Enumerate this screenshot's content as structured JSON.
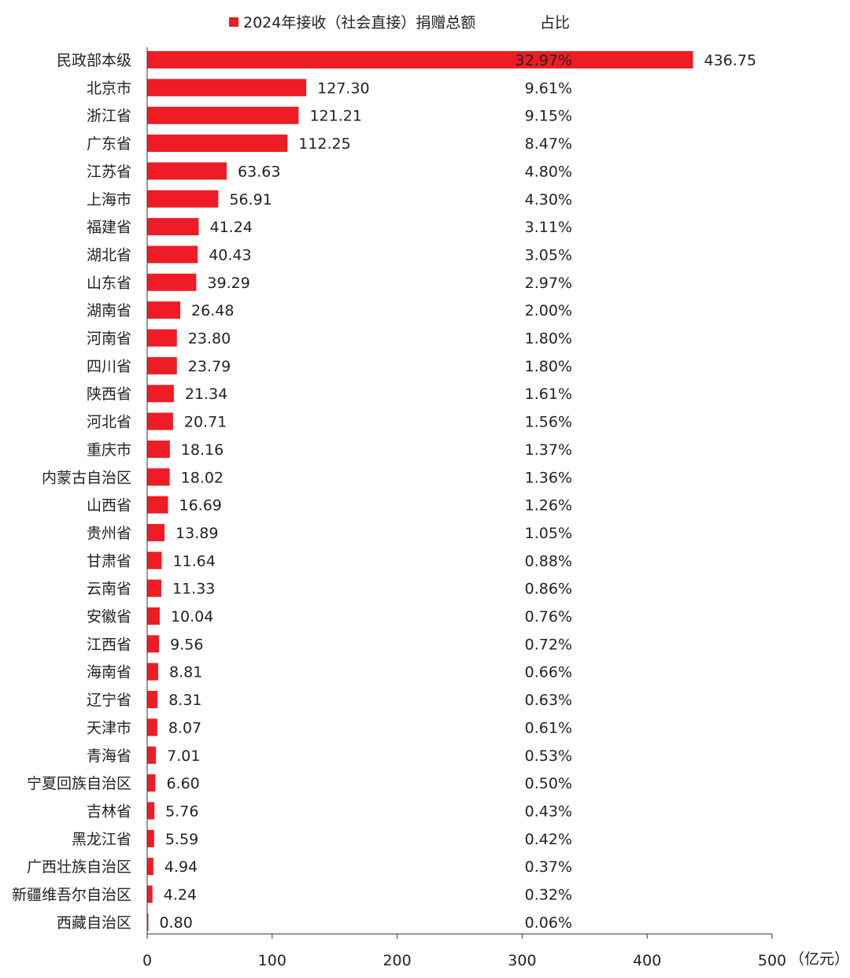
{
  "chart_data": {
    "type": "bar",
    "orientation": "horizontal",
    "colors": {
      "bar": "#ee1c25",
      "axis": "#333333",
      "text": "#222222"
    },
    "legend": {
      "series_name": "2024年接收（社会直接）捐赠总额",
      "position": "top",
      "share_header": "占比"
    },
    "categories": [
      "民政部本级",
      "北京市",
      "浙江省",
      "广东省",
      "江苏省",
      "上海市",
      "福建省",
      "湖北省",
      "山东省",
      "湖南省",
      "河南省",
      "四川省",
      "陕西省",
      "河北省",
      "重庆市",
      "内蒙古自治区",
      "山西省",
      "贵州省",
      "甘肃省",
      "云南省",
      "安徽省",
      "江西省",
      "海南省",
      "辽宁省",
      "天津市",
      "青海省",
      "宁夏回族自治区",
      "吉林省",
      "黑龙江省",
      "广西壮族自治区",
      "新疆维吾尔自治区",
      "西藏自治区"
    ],
    "series": [
      {
        "name": "2024年接收（社会直接）捐赠总额",
        "values": [
          436.75,
          127.3,
          121.21,
          112.25,
          63.63,
          56.91,
          41.24,
          40.43,
          39.29,
          26.48,
          23.8,
          23.79,
          21.34,
          20.71,
          18.16,
          18.02,
          16.69,
          13.89,
          11.64,
          11.33,
          10.04,
          9.56,
          8.81,
          8.31,
          8.07,
          7.01,
          6.6,
          5.76,
          5.59,
          4.94,
          4.24,
          0.8
        ],
        "value_labels": [
          "436.75",
          "127.30",
          "121.21",
          "112.25",
          "63.63",
          "56.91",
          "41.24",
          "40.43",
          "39.29",
          "26.48",
          "23.80",
          "23.79",
          "21.34",
          "20.71",
          "18.16",
          "18.02",
          "16.69",
          "13.89",
          "11.64",
          "11.33",
          "10.04",
          "9.56",
          "8.81",
          "8.31",
          "8.07",
          "7.01",
          "6.60",
          "5.76",
          "5.59",
          "4.94",
          "4.24",
          "0.80"
        ]
      }
    ],
    "shares": [
      "32.97%",
      "9.61%",
      "9.15%",
      "8.47%",
      "4.80%",
      "4.30%",
      "3.11%",
      "3.05%",
      "2.97%",
      "2.00%",
      "1.80%",
      "1.80%",
      "1.61%",
      "1.56%",
      "1.37%",
      "1.36%",
      "1.26%",
      "1.05%",
      "0.88%",
      "0.86%",
      "0.76%",
      "0.72%",
      "0.66%",
      "0.63%",
      "0.61%",
      "0.53%",
      "0.50%",
      "0.43%",
      "0.42%",
      "0.37%",
      "0.32%",
      "0.06%"
    ],
    "xaxis": {
      "min": 0,
      "max": 500,
      "ticks": [
        0,
        100,
        200,
        300,
        400,
        500
      ],
      "unit_label": "（亿元）"
    },
    "grid": false
  }
}
